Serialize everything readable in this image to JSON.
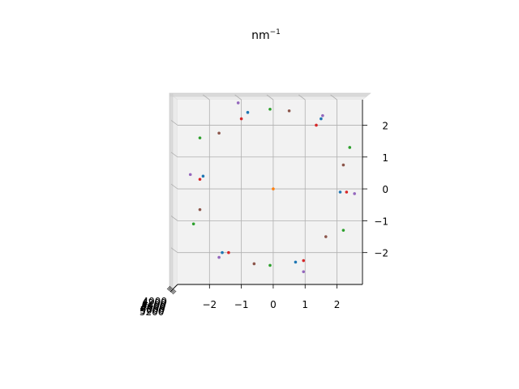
{
  "chart_data": {
    "type": "scatter",
    "title": "nm",
    "title_exponent": "−1",
    "view": "3d-top",
    "grid": true,
    "pane_color": "#f2f2f2",
    "xlim": [
      -3,
      2.8
    ],
    "ylim": [
      -3,
      2.8
    ],
    "x_ticks": [
      -2,
      -1,
      0,
      1,
      2
    ],
    "x_tick_labels": [
      "−2",
      "−1",
      "0",
      "1",
      "2"
    ],
    "y_ticks": [
      -2,
      -1,
      0,
      1,
      2
    ],
    "y_tick_labels": [
      "−2",
      "−1",
      "0",
      "1",
      "2"
    ],
    "z_tick_labels": [
      "4000",
      "4200",
      "4400",
      "4600",
      "4800",
      "5000",
      "5200"
    ],
    "series": [
      {
        "color": "#1f77b4",
        "points": [
          [
            -2.2,
            0.4
          ],
          [
            -0.8,
            2.4
          ],
          [
            1.5,
            2.2
          ],
          [
            2.1,
            -0.1
          ],
          [
            0.7,
            -2.3
          ],
          [
            -1.6,
            -2.0
          ]
        ]
      },
      {
        "color": "#ff7f0e",
        "points": [
          [
            0.0,
            0.0
          ]
        ]
      },
      {
        "color": "#2ca02c",
        "points": [
          [
            -0.1,
            2.5
          ],
          [
            -2.3,
            1.6
          ],
          [
            2.4,
            1.3
          ],
          [
            2.2,
            -1.3
          ],
          [
            -0.1,
            -2.4
          ],
          [
            -2.5,
            -1.1
          ]
        ]
      },
      {
        "color": "#d62728",
        "points": [
          [
            -1.0,
            2.2
          ],
          [
            1.35,
            2.0
          ],
          [
            -2.3,
            0.3
          ],
          [
            2.3,
            -0.1
          ],
          [
            0.95,
            -2.25
          ],
          [
            -1.4,
            -2.0
          ]
        ]
      },
      {
        "color": "#9467bd",
        "points": [
          [
            -1.1,
            2.7
          ],
          [
            1.55,
            2.3
          ],
          [
            -2.6,
            0.45
          ],
          [
            2.55,
            -0.15
          ],
          [
            0.95,
            -2.6
          ],
          [
            -1.7,
            -2.15
          ]
        ]
      },
      {
        "color": "#8c564b",
        "points": [
          [
            0.5,
            2.45
          ],
          [
            -1.7,
            1.75
          ],
          [
            2.2,
            0.75
          ],
          [
            1.65,
            -1.5
          ],
          [
            -0.6,
            -2.35
          ],
          [
            -2.3,
            -0.65
          ]
        ]
      }
    ]
  }
}
